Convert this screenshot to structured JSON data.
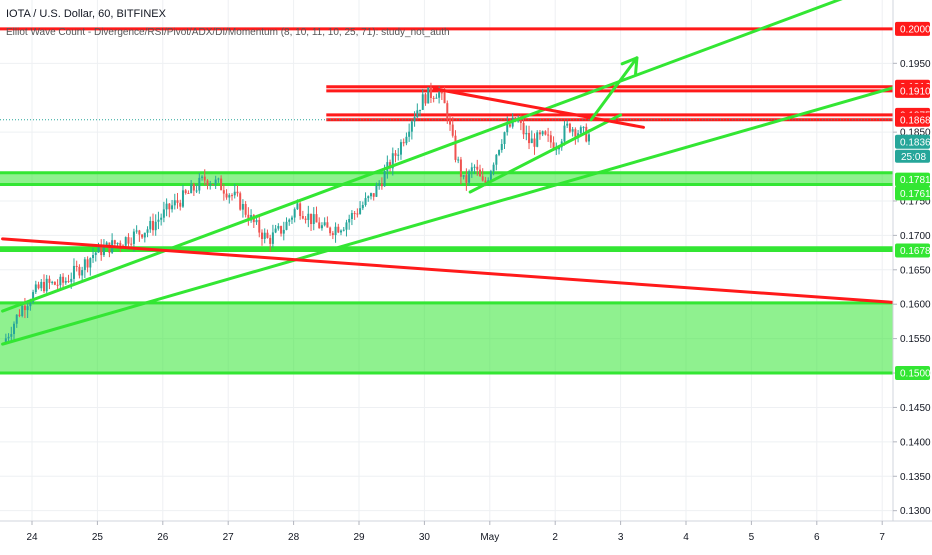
{
  "header": {
    "title": "IOTA / U.S. Dollar, 60, BITFINEX",
    "study": "Elliot Wave Count - Divergence/RSI/Pivot/ADX/DI/Momentum (8, 10, 11, 10, 25, 71): study_not_auth"
  },
  "chart_data": {
    "type": "candlestick",
    "symbol": "IOTA / U.S. Dollar",
    "interval": "60",
    "exchange": "BITFINEX",
    "y_axis": {
      "range": [
        0.1285,
        0.2042
      ],
      "ticks": [
        "0.1950",
        "0.1850",
        "0.1750",
        "0.1700",
        "0.1650",
        "0.1600",
        "0.1550",
        "0.1500",
        "0.1450",
        "0.1400",
        "0.1350",
        "0.1300"
      ]
    },
    "x_axis": {
      "ticks": [
        {
          "label": "24",
          "day": 0
        },
        {
          "label": "25",
          "day": 1
        },
        {
          "label": "26",
          "day": 2
        },
        {
          "label": "27",
          "day": 3
        },
        {
          "label": "28",
          "day": 4
        },
        {
          "label": "29",
          "day": 5
        },
        {
          "label": "30",
          "day": 6
        },
        {
          "label": "May",
          "day": 7
        },
        {
          "label": "2",
          "day": 8
        },
        {
          "label": "3",
          "day": 9
        },
        {
          "label": "4",
          "day": 10
        },
        {
          "label": "5",
          "day": 11
        },
        {
          "label": "6",
          "day": 12
        },
        {
          "label": "7",
          "day": 13
        }
      ]
    },
    "price_labels": [
      {
        "value": 0.2,
        "text": "0.2000",
        "color": "#ff1a1a"
      },
      {
        "value": 0.1916,
        "text": "0.1916",
        "color": "#ff1a1a"
      },
      {
        "value": 0.191,
        "text": "0.1910",
        "color": "#ff1a1a"
      },
      {
        "value": 0.1875,
        "text": "0.1875",
        "color": "#ff1a1a"
      },
      {
        "value": 0.1868,
        "text": "0.1868",
        "color": "#ff1a1a"
      },
      {
        "value": 0.1836,
        "text": "0.1836",
        "color": "#26a69a"
      },
      {
        "value": 0.1781,
        "text": "0.1781",
        "color": "#33e633"
      },
      {
        "value": 0.1761,
        "text": "0.1761",
        "color": "#33e633"
      },
      {
        "value": 0.1678,
        "text": "0.1678",
        "color": "#33e633"
      },
      {
        "value": 0.15,
        "text": "0.1500",
        "color": "#33e633"
      }
    ],
    "countdown": "25:08",
    "last_price_line": 0.1868,
    "horizontal_red_lines": [
      0.2,
      0.1916,
      0.191,
      0.1875,
      0.1868
    ],
    "red_bands": [
      {
        "from_day": 4.5,
        "top": 0.1916,
        "bottom": 0.191
      },
      {
        "from_day": 4.5,
        "top": 0.1875,
        "bottom": 0.1868
      }
    ],
    "green_zones": [
      {
        "top": 0.1791,
        "bottom": 0.1774
      },
      {
        "top": 0.1682,
        "bottom": 0.1678
      },
      {
        "top": 0.1602,
        "bottom": 0.15
      }
    ],
    "trend_lines": [
      {
        "name": "channel-upper",
        "color": "#33e633",
        "from": [
          -0.45,
          0.159
        ],
        "to": [
          12.5,
          0.2048
        ]
      },
      {
        "name": "channel-lower",
        "color": "#33e633",
        "from": [
          -0.45,
          0.1542
        ],
        "to": [
          13.7,
          0.1929
        ]
      },
      {
        "name": "wedge-support",
        "color": "#33e633",
        "from": [
          6.7,
          0.1763
        ],
        "to": [
          9.0,
          0.1875
        ]
      },
      {
        "name": "long-resistance",
        "color": "#ff1a1a",
        "from": [
          -0.45,
          0.1695
        ],
        "to": [
          13.7,
          0.1599
        ]
      },
      {
        "name": "wedge-resistance",
        "color": "#ff1a1a",
        "from": [
          6.15,
          0.1913
        ],
        "to": [
          9.35,
          0.1857
        ]
      }
    ],
    "projection_arrow": {
      "color": "#33e633",
      "from": [
        8.55,
        0.1868
      ],
      "to": [
        9.25,
        0.1958
      ]
    },
    "series_anchors": [
      [
        -0.4,
        0.1543
      ],
      [
        -0.1,
        0.1598
      ],
      [
        0.2,
        0.1628
      ],
      [
        0.5,
        0.163
      ],
      [
        0.8,
        0.1655
      ],
      [
        1.0,
        0.1675
      ],
      [
        1.25,
        0.1685
      ],
      [
        1.55,
        0.1698
      ],
      [
        1.85,
        0.1712
      ],
      [
        2.15,
        0.174
      ],
      [
        2.45,
        0.1762
      ],
      [
        2.7,
        0.1783
      ],
      [
        2.95,
        0.1771
      ],
      [
        3.2,
        0.175
      ],
      [
        3.45,
        0.1715
      ],
      [
        3.65,
        0.1693
      ],
      [
        3.9,
        0.1712
      ],
      [
        4.1,
        0.1743
      ],
      [
        4.35,
        0.172
      ],
      [
        4.55,
        0.1707
      ],
      [
        4.8,
        0.1716
      ],
      [
        5.0,
        0.1735
      ],
      [
        5.25,
        0.1758
      ],
      [
        5.45,
        0.1792
      ],
      [
        5.65,
        0.1826
      ],
      [
        5.85,
        0.1871
      ],
      [
        6.05,
        0.1902
      ],
      [
        6.25,
        0.191
      ],
      [
        6.38,
        0.1882
      ],
      [
        6.5,
        0.1822
      ],
      [
        6.65,
        0.1775
      ],
      [
        6.8,
        0.18
      ],
      [
        6.95,
        0.177
      ],
      [
        7.1,
        0.181
      ],
      [
        7.25,
        0.1848
      ],
      [
        7.45,
        0.1868
      ],
      [
        7.65,
        0.1835
      ],
      [
        7.85,
        0.1842
      ],
      [
        8.05,
        0.1832
      ],
      [
        8.25,
        0.186
      ],
      [
        8.45,
        0.1848
      ],
      [
        8.55,
        0.1845
      ]
    ]
  }
}
